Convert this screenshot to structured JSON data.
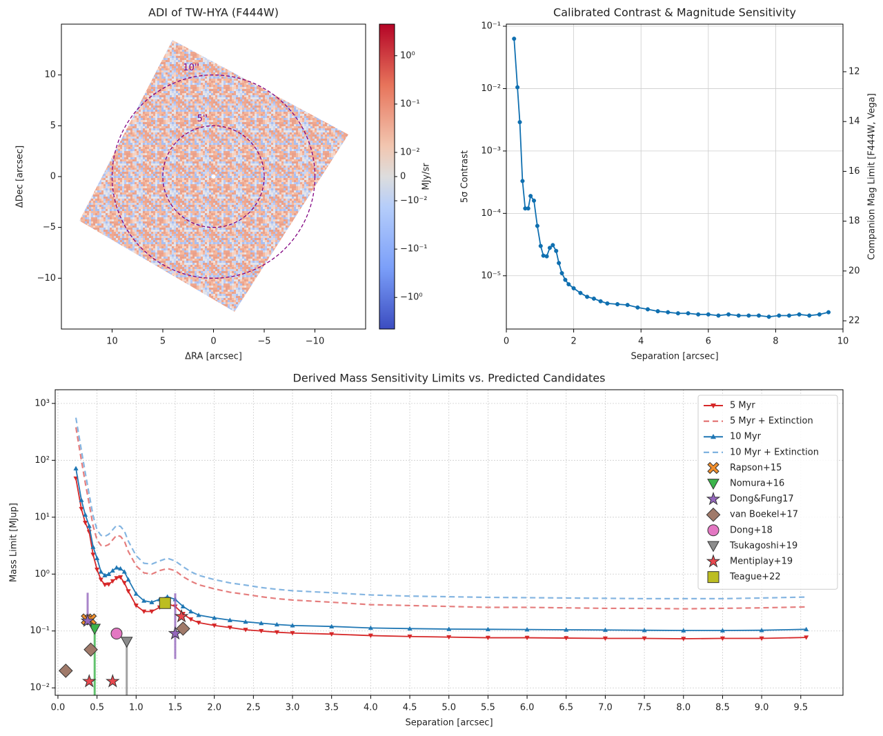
{
  "chart_data": [
    {
      "type": "image",
      "title": "ADI of TW-HYA (F444W)",
      "xlabel": "ΔRA [arcsec]",
      "ylabel": "ΔDec [arcsec]",
      "xlim": [
        15,
        -15
      ],
      "ylim": [
        -15,
        15
      ],
      "xticks": [
        10,
        5,
        0,
        {
          "value": -5,
          "label": "−5"
        },
        {
          "value": -10,
          "label": "−10"
        }
      ],
      "yticks": [
        {
          "value": -10,
          "label": "−10"
        },
        {
          "value": -5,
          "label": "−5"
        },
        0,
        5,
        10
      ],
      "circles": [
        {
          "label": "10''",
          "radius": 10
        },
        {
          "label": "5''",
          "radius": 5
        }
      ],
      "circle_color": "#800080",
      "colorbar": {
        "label": "MJy/sr",
        "scale": "symlog",
        "linthresh": 0.01,
        "linscale": 0.5,
        "clim": [
          -4.5,
          4.5
        ],
        "ticks": [
          {
            "value": 1,
            "label": "10⁰"
          },
          {
            "value": 0.1,
            "label": "10⁻¹"
          },
          {
            "value": 0.01,
            "label": "10⁻²"
          },
          0,
          {
            "value": -0.01,
            "label": "−10⁻²"
          },
          {
            "value": -0.1,
            "label": "−10⁻¹"
          },
          {
            "value": -1,
            "label": "−10⁰"
          }
        ]
      }
    },
    {
      "type": "line",
      "title": "Calibrated Contrast & Magnitude Sensitivity",
      "xlabel": "Separation [arcsec]",
      "ylabel": "5σ Contrast",
      "y2label": "Companion Mag Limit [F444W, Vega]",
      "log_y": true,
      "grid": true,
      "xlim": [
        0,
        10
      ],
      "xticks": [
        0,
        2,
        4,
        6,
        8,
        10
      ],
      "ylim": [
        1.4e-06,
        0.108
      ],
      "yticks": [
        {
          "value": 1e-05,
          "label": "10⁻⁵"
        },
        {
          "value": 0.0001,
          "label": "10⁻⁴"
        },
        {
          "value": 0.001,
          "label": "10⁻³"
        },
        {
          "value": 0.01,
          "label": "10⁻²"
        },
        {
          "value": 0.1,
          "label": "10⁻¹"
        }
      ],
      "y2lim": [
        22.33,
        10.09
      ],
      "y2ticks": [
        12,
        14,
        16,
        18,
        20,
        22
      ],
      "x": [
        0.23,
        0.33,
        0.4,
        0.48,
        0.56,
        0.65,
        0.72,
        0.82,
        0.92,
        1.02,
        1.1,
        1.2,
        1.29,
        1.38,
        1.48,
        1.56,
        1.65,
        1.75,
        1.85,
        2.0,
        2.2,
        2.4,
        2.6,
        2.8,
        3.0,
        3.3,
        3.6,
        3.9,
        4.2,
        4.5,
        4.8,
        5.1,
        5.4,
        5.7,
        6.0,
        6.3,
        6.6,
        6.9,
        7.2,
        7.5,
        7.8,
        8.1,
        8.4,
        8.7,
        9.0,
        9.3,
        9.57
      ],
      "series": [
        {
          "color": "#0f6fb0",
          "style": "solid",
          "marker": "o",
          "values": [
            0.063,
            0.0105,
            0.0029,
            0.00033,
            0.00012,
            0.00012,
            0.00019,
            0.00016,
            6.3e-05,
            3e-05,
            2.1e-05,
            2.05e-05,
            2.8e-05,
            3.1e-05,
            2.5e-05,
            1.6e-05,
            1.1e-05,
            8.6e-06,
            7.3e-06,
            6.3e-06,
            5.3e-06,
            4.6e-06,
            4.3e-06,
            3.9e-06,
            3.6e-06,
            3.5e-06,
            3.4e-06,
            3.1e-06,
            2.9e-06,
            2.7e-06,
            2.6e-06,
            2.5e-06,
            2.5e-06,
            2.4e-06,
            2.4e-06,
            2.3e-06,
            2.4e-06,
            2.3e-06,
            2.3e-06,
            2.3e-06,
            2.2e-06,
            2.3e-06,
            2.3e-06,
            2.4e-06,
            2.3e-06,
            2.4e-06,
            2.6e-06
          ]
        }
      ]
    },
    {
      "type": "line",
      "title": "Derived Mass Sensitivity Limits vs. Predicted Candidates",
      "xlabel": "Separation [arcsec]",
      "ylabel": "Mass Limit [MJup]",
      "log_y": true,
      "grid": true,
      "legend": "upper right",
      "xlim": [
        -0.035,
        10.04
      ],
      "xticks": [
        {
          "value": 0,
          "label": "0.0"
        },
        0.5,
        {
          "value": 1,
          "label": "1.0"
        },
        1.5,
        {
          "value": 2,
          "label": "2.0"
        },
        2.5,
        {
          "value": 3,
          "label": "3.0"
        },
        3.5,
        {
          "value": 4,
          "label": "4.0"
        },
        4.5,
        {
          "value": 5,
          "label": "5.0"
        },
        5.5,
        {
          "value": 6,
          "label": "6.0"
        },
        6.5,
        {
          "value": 7,
          "label": "7.0"
        },
        7.5,
        {
          "value": 8,
          "label": "8.0"
        },
        8.5,
        {
          "value": 9,
          "label": "9.0"
        },
        9.5
      ],
      "ylim": [
        0.0074,
        1740
      ],
      "yticks": [
        {
          "value": 0.01,
          "label": "10⁻²"
        },
        {
          "value": 0.1,
          "label": "10⁻¹"
        },
        {
          "value": 1,
          "label": "10⁰"
        },
        {
          "value": 10,
          "label": "10¹"
        },
        {
          "value": 100,
          "label": "10²"
        },
        {
          "value": 1000,
          "label": "10³"
        }
      ],
      "x": [
        0.23,
        0.3,
        0.35,
        0.4,
        0.45,
        0.5,
        0.55,
        0.6,
        0.65,
        0.7,
        0.75,
        0.8,
        0.85,
        0.9,
        1.0,
        1.1,
        1.2,
        1.3,
        1.4,
        1.5,
        1.6,
        1.7,
        1.8,
        2.0,
        2.2,
        2.4,
        2.6,
        2.8,
        3.0,
        3.5,
        4.0,
        4.5,
        5.0,
        5.5,
        6.0,
        6.5,
        7.0,
        7.5,
        8.0,
        8.5,
        9.0,
        9.57
      ],
      "series": [
        {
          "name": "5 Myr",
          "color": "#d62728",
          "style": "solid",
          "marker": "v",
          "values": [
            48,
            14,
            8,
            5.5,
            2.2,
            1.2,
            0.8,
            0.65,
            0.66,
            0.75,
            0.85,
            0.88,
            0.7,
            0.5,
            0.28,
            0.22,
            0.22,
            0.26,
            0.3,
            0.27,
            0.2,
            0.16,
            0.14,
            0.125,
            0.115,
            0.105,
            0.1,
            0.095,
            0.092,
            0.088,
            0.083,
            0.08,
            0.078,
            0.076,
            0.076,
            0.075,
            0.074,
            0.074,
            0.073,
            0.074,
            0.074,
            0.077
          ]
        },
        {
          "name": "5 Myr + Extinction",
          "color": "#e06666",
          "style": "dashed",
          "values": [
            380,
            100,
            40,
            17,
            7,
            4,
            3.2,
            3.1,
            3.3,
            4,
            4.8,
            4.6,
            3.8,
            2.5,
            1.4,
            1.05,
            1.0,
            1.15,
            1.25,
            1.15,
            0.9,
            0.75,
            0.65,
            0.55,
            0.48,
            0.44,
            0.4,
            0.37,
            0.35,
            0.32,
            0.29,
            0.28,
            0.27,
            0.26,
            0.26,
            0.255,
            0.25,
            0.25,
            0.245,
            0.25,
            0.255,
            0.265
          ]
        },
        {
          "name": "10 Myr",
          "color": "#1f77b4",
          "style": "solid",
          "marker": "^",
          "values": [
            72,
            20,
            11,
            7,
            3,
            1.9,
            1.1,
            0.95,
            1.0,
            1.15,
            1.3,
            1.25,
            1.1,
            0.8,
            0.45,
            0.34,
            0.32,
            0.36,
            0.4,
            0.36,
            0.27,
            0.22,
            0.19,
            0.17,
            0.155,
            0.145,
            0.137,
            0.13,
            0.125,
            0.12,
            0.113,
            0.11,
            0.108,
            0.107,
            0.106,
            0.105,
            0.104,
            0.103,
            0.102,
            0.102,
            0.103,
            0.107
          ]
        },
        {
          "name": "10 Myr + Extinction",
          "color": "#6fa8dc",
          "style": "dashed",
          "values": [
            560,
            150,
            60,
            25,
            10.5,
            6,
            4.8,
            4.6,
            5,
            6,
            7.2,
            6.9,
            5.7,
            3.8,
            2.1,
            1.55,
            1.5,
            1.7,
            1.9,
            1.7,
            1.35,
            1.1,
            0.95,
            0.8,
            0.7,
            0.64,
            0.58,
            0.54,
            0.51,
            0.47,
            0.43,
            0.41,
            0.4,
            0.39,
            0.385,
            0.38,
            0.375,
            0.37,
            0.37,
            0.37,
            0.38,
            0.395
          ]
        },
        {
          "name": "Rapson+15",
          "color": "#f28e2b",
          "style": "scatter",
          "marker": "X",
          "x": [
            0.37,
            0.42
          ],
          "values": [
            0.16,
            0.16
          ]
        },
        {
          "name": "Nomura+16",
          "color": "#3cb44b",
          "style": "scatter",
          "marker": "v",
          "x": [
            0.47
          ],
          "values": [
            0.11
          ],
          "ranges": [
            [
              0.005,
              0.11
            ]
          ]
        },
        {
          "name": "Dong&Fung17",
          "color": "#9467bd",
          "style": "scatter",
          "marker": "*",
          "x": [
            0.38,
            1.5
          ],
          "values": [
            0.15,
            0.09
          ],
          "ranges": [
            [
              0.15,
              0.47
            ],
            [
              0.032,
              0.46
            ]
          ]
        },
        {
          "name": "van Boekel+17",
          "color": "#a07a6a",
          "style": "scatter",
          "marker": "D",
          "x": [
            0.1,
            0.42,
            1.6
          ],
          "values": [
            0.02,
            0.047,
            0.11
          ]
        },
        {
          "name": "Dong+18",
          "color": "#e377c2",
          "style": "scatter",
          "marker": "o",
          "x": [
            0.75
          ],
          "values": [
            0.09
          ]
        },
        {
          "name": "Tsukagoshi+19",
          "color": "#8c8c8c",
          "style": "scatter",
          "marker": "v",
          "x": [
            0.88
          ],
          "values": [
            0.065
          ],
          "ranges": [
            [
              0.005,
              0.065
            ]
          ]
        },
        {
          "name": "Mentiplay+19",
          "color": "#e8474d",
          "style": "scatter",
          "marker": "*",
          "x": [
            0.4,
            0.7,
            1.58
          ],
          "values": [
            0.013,
            0.013,
            0.18
          ]
        },
        {
          "name": "Teague+22",
          "color": "#bcbd22",
          "style": "scatter",
          "marker": "s",
          "x": [
            1.37
          ],
          "values": [
            0.31
          ]
        }
      ]
    }
  ]
}
